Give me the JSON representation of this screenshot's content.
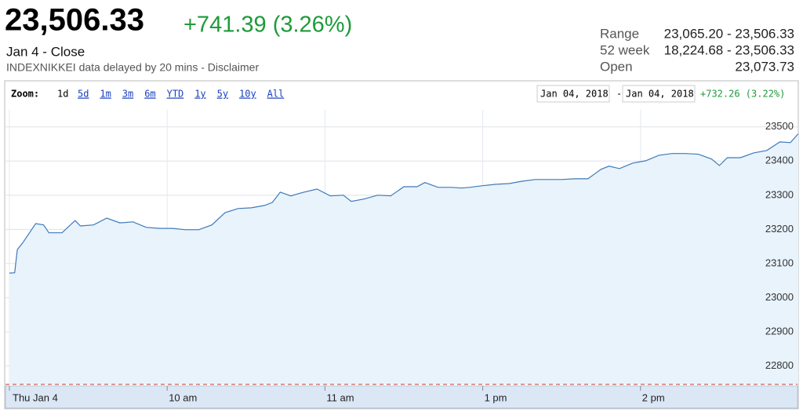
{
  "header": {
    "price": "23,506.33",
    "change": "+741.39 (3.26%)",
    "date": "Jan 4 - Close",
    "source": "INDEXNIKKEI data delayed by 20 mins - Disclaimer",
    "stats": [
      [
        "Range",
        "23,065.20 - 23,506.33"
      ],
      [
        "52 week",
        "18,224.68 - 23,506.33"
      ],
      [
        "Open",
        "23,073.73"
      ]
    ]
  },
  "toolbar": {
    "zoom_label": "Zoom:",
    "current": "1d",
    "links": [
      "5d",
      "1m",
      "3m",
      "6m",
      "YTD",
      "1y",
      "5y",
      "10y",
      "All"
    ],
    "from": "Jan 04, 2018",
    "separator": "-",
    "to": "Jan 04, 2018",
    "change": "+732.26 (3.22%)"
  },
  "chart_data": {
    "type": "area",
    "color": "#3d7ab8",
    "fill": "#e9f3fc",
    "x": [
      0,
      2,
      3,
      5,
      10,
      13,
      15,
      20,
      25,
      27,
      32,
      37,
      42,
      47,
      52,
      57,
      62,
      67,
      72,
      77,
      82,
      87,
      92,
      97,
      100,
      103,
      107,
      112,
      117,
      122,
      127,
      130,
      135,
      140,
      145,
      150,
      155,
      158,
      163,
      168,
      172,
      175,
      180,
      185,
      190,
      195,
      200,
      205,
      210,
      215,
      220,
      225,
      228,
      232,
      237,
      242,
      247,
      252,
      257,
      262,
      267,
      270,
      273,
      278,
      283,
      288,
      293,
      297,
      300
    ],
    "values": [
      23072,
      23073,
      23141,
      23160,
      23217,
      23213,
      23190,
      23190,
      23226,
      23210,
      23213,
      23233,
      23219,
      23222,
      23206,
      23203,
      23203,
      23199,
      23199,
      23213,
      23249,
      23261,
      23263,
      23270,
      23279,
      23309,
      23298,
      23309,
      23318,
      23298,
      23300,
      23282,
      23289,
      23300,
      23298,
      23325,
      23325,
      23337,
      23323,
      23323,
      23321,
      23323,
      23328,
      23332,
      23334,
      23341,
      23346,
      23346,
      23346,
      23348,
      23348,
      23376,
      23385,
      23378,
      23394,
      23401,
      23417,
      23422,
      23422,
      23420,
      23406,
      23387,
      23410,
      23410,
      23424,
      23431,
      23456,
      23454,
      23480
    ],
    "xlim": [
      0,
      300
    ],
    "xticks": [
      {
        "value": 0,
        "label": "Thu Jan 4"
      },
      {
        "value": 60,
        "label": "10 am"
      },
      {
        "value": 120,
        "label": "11 am"
      },
      {
        "value": 180,
        "label": "1 pm"
      },
      {
        "value": 240,
        "label": "2 pm"
      }
    ],
    "ylim": [
      22730,
      23550
    ],
    "yticks": [
      22800,
      22900,
      23000,
      23100,
      23200,
      23300,
      23400,
      23500
    ],
    "grid": true,
    "reference_line": 22746,
    "reference_color": "#c0392b"
  }
}
